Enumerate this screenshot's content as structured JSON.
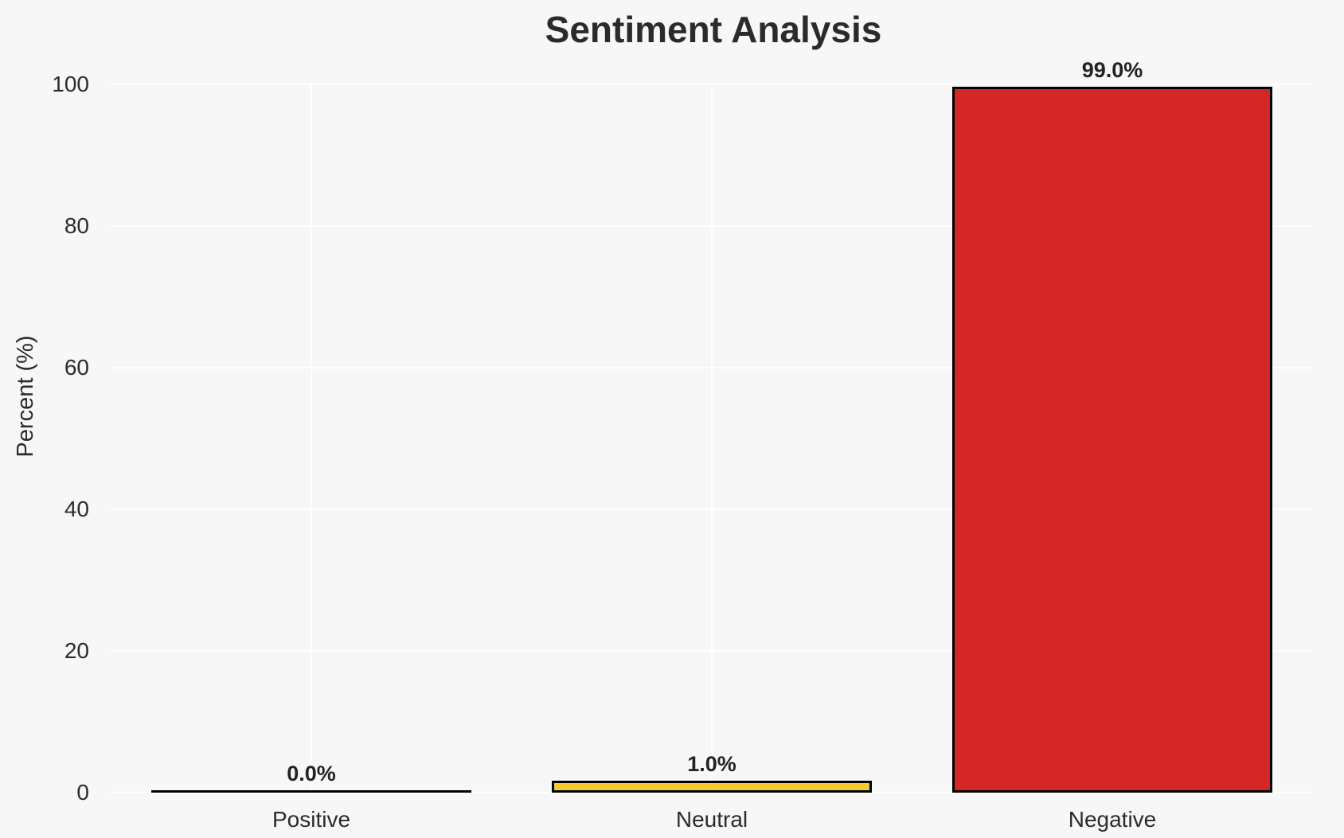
{
  "figure": {
    "background_color": "#f7f7f7",
    "text_color": "#2b2b2b"
  },
  "chart_data": {
    "type": "bar",
    "title": "Sentiment Analysis",
    "xlabel": "",
    "ylabel": "Percent (%)",
    "categories": [
      "Positive",
      "Neutral",
      "Negative"
    ],
    "values": [
      0.0,
      1.0,
      99.0
    ],
    "value_labels": [
      "0.0%",
      "1.0%",
      "99.0%"
    ],
    "bar_colors": [
      "#808080",
      "#f4cc2e",
      "#d62728"
    ],
    "bar_edge_color": "#000000",
    "yticks": [
      0,
      20,
      40,
      60,
      80,
      100
    ],
    "ytick_labels": [
      "0",
      "20",
      "40",
      "60",
      "80",
      "100"
    ],
    "ylim": [
      0,
      100
    ],
    "grid": true,
    "grid_color": "#ffffff",
    "legend_position": "none"
  }
}
